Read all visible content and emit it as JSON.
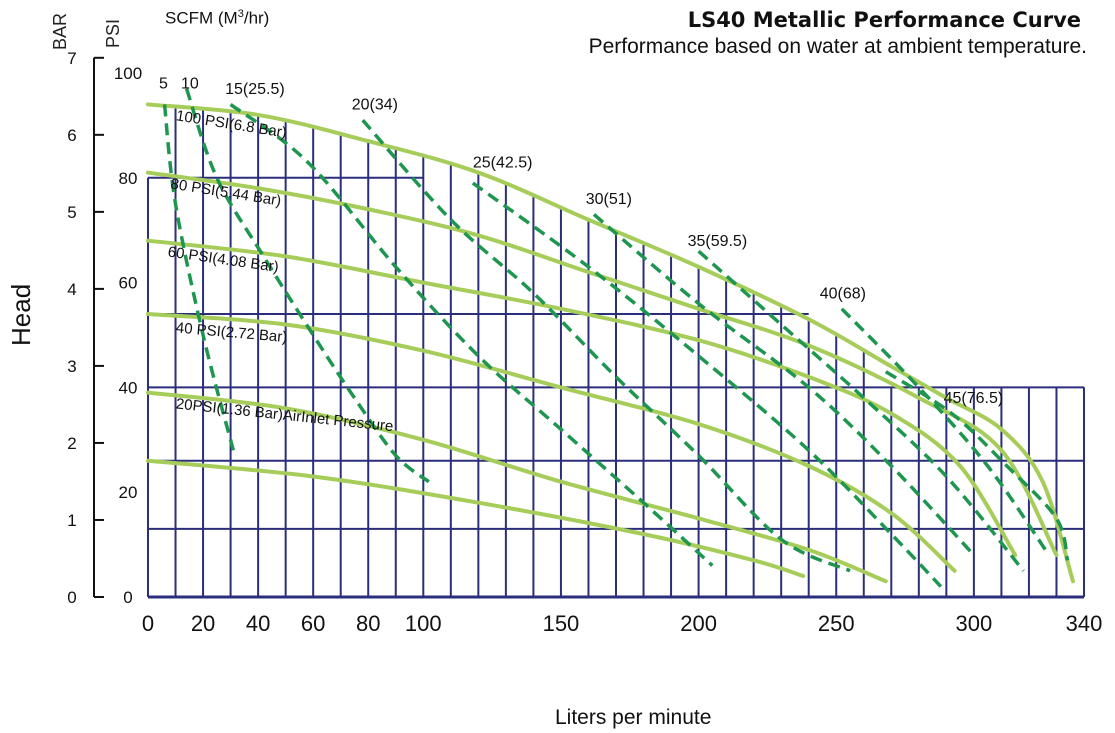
{
  "header": {
    "title": "LS40 Metallic Performance Curve",
    "subtitle": "Performance based on water at ambient temperature.",
    "bar_unit": "BAR",
    "psi_unit": "PSI",
    "scfm_prefix": "SCFM (M",
    "scfm_sup": "3",
    "scfm_suffix": "/hr)",
    "head_label": "Head",
    "x_label": "Liters per minute"
  },
  "chart_data": {
    "type": "line",
    "title": "LS40 Metallic Performance Curve",
    "subtitle": "Performance based on water at ambient temperature.",
    "xlabel": "Liters per minute",
    "ylabel": "Head",
    "xlim": [
      0,
      340
    ],
    "ylim": [
      0,
      100
    ],
    "x_ticks": [
      0,
      20,
      40,
      60,
      80,
      100,
      150,
      200,
      250,
      300,
      340
    ],
    "y_psi_ticks": [
      0,
      20,
      40,
      60,
      80,
      100
    ],
    "y_bar_ticks": [
      0,
      1,
      2,
      3,
      4,
      5,
      6,
      7
    ],
    "grid": true,
    "series": [
      {
        "name": "100 PSI(6.8 Bar)",
        "kind": "air_inlet_pressure",
        "color": "#a6cc5a",
        "points": [
          [
            0,
            94
          ],
          [
            40,
            92
          ],
          [
            80,
            87
          ],
          [
            120,
            81
          ],
          [
            160,
            72
          ],
          [
            200,
            63
          ],
          [
            240,
            53
          ],
          [
            270,
            44
          ],
          [
            290,
            38
          ],
          [
            310,
            32
          ],
          [
            325,
            22
          ],
          [
            336,
            3
          ]
        ]
      },
      {
        "name": "80 PSI(5.44 Bar)",
        "kind": "air_inlet_pressure",
        "color": "#a6cc5a",
        "points": [
          [
            0,
            81
          ],
          [
            40,
            78
          ],
          [
            80,
            74
          ],
          [
            120,
            69
          ],
          [
            160,
            62
          ],
          [
            200,
            55
          ],
          [
            240,
            48
          ],
          [
            280,
            38
          ],
          [
            310,
            28
          ],
          [
            330,
            8
          ]
        ]
      },
      {
        "name": "60 PSI(4.08 Bar)",
        "kind": "air_inlet_pressure",
        "color": "#a6cc5a",
        "points": [
          [
            0,
            68
          ],
          [
            50,
            65
          ],
          [
            100,
            60
          ],
          [
            150,
            55
          ],
          [
            200,
            49
          ],
          [
            240,
            42
          ],
          [
            270,
            35
          ],
          [
            295,
            25
          ],
          [
            315,
            8
          ]
        ]
      },
      {
        "name": "40 PSI(2.72 Bar)",
        "kind": "air_inlet_pressure",
        "color": "#a6cc5a",
        "points": [
          [
            0,
            54
          ],
          [
            50,
            52
          ],
          [
            100,
            47
          ],
          [
            150,
            40
          ],
          [
            200,
            33
          ],
          [
            240,
            25
          ],
          [
            270,
            16
          ],
          [
            293,
            5
          ]
        ]
      },
      {
        "name": "20PSI(1.36 Bar)AirInlet Pressure",
        "kind": "air_inlet_pressure",
        "color": "#a6cc5a",
        "points": [
          [
            0,
            39
          ],
          [
            50,
            36
          ],
          [
            100,
            30
          ],
          [
            150,
            22
          ],
          [
            200,
            15
          ],
          [
            240,
            9
          ],
          [
            268,
            3
          ]
        ]
      },
      {
        "name": "",
        "kind": "air_inlet_pressure",
        "color": "#a6cc5a",
        "points": [
          [
            0,
            26
          ],
          [
            60,
            23
          ],
          [
            120,
            18
          ],
          [
            180,
            12
          ],
          [
            220,
            7
          ],
          [
            238,
            4
          ]
        ]
      },
      {
        "name": "5",
        "kind": "scfm",
        "color": "#1e9650",
        "points": [
          [
            6,
            94
          ],
          [
            10,
            75
          ],
          [
            20,
            50
          ],
          [
            31,
            28
          ]
        ]
      },
      {
        "name": "10",
        "kind": "scfm",
        "color": "#1e9650",
        "points": [
          [
            14,
            97
          ],
          [
            25,
            80
          ],
          [
            42,
            65
          ],
          [
            60,
            50
          ],
          [
            75,
            38
          ],
          [
            90,
            27
          ],
          [
            102,
            22
          ]
        ]
      },
      {
        "name": "15(25.5)",
        "kind": "scfm",
        "color": "#1e9650",
        "points": [
          [
            30,
            94
          ],
          [
            58,
            83
          ],
          [
            90,
            63
          ],
          [
            120,
            46
          ],
          [
            150,
            32
          ],
          [
            180,
            18
          ],
          [
            205,
            6
          ]
        ]
      },
      {
        "name": "20(34)",
        "kind": "scfm",
        "color": "#1e9650",
        "points": [
          [
            78,
            91
          ],
          [
            110,
            72
          ],
          [
            140,
            58
          ],
          [
            170,
            42
          ],
          [
            200,
            27
          ],
          [
            230,
            11
          ],
          [
            255,
            5
          ]
        ]
      },
      {
        "name": "25(42.5)",
        "kind": "scfm",
        "color": "#1e9650",
        "points": [
          [
            118,
            79
          ],
          [
            160,
            63
          ],
          [
            200,
            46
          ],
          [
            240,
            28
          ],
          [
            270,
            12
          ],
          [
            288,
            2
          ]
        ]
      },
      {
        "name": "30(51)",
        "kind": "scfm",
        "color": "#1e9650",
        "points": [
          [
            162,
            73
          ],
          [
            200,
            56
          ],
          [
            240,
            40
          ],
          [
            270,
            25
          ],
          [
            300,
            8
          ]
        ]
      },
      {
        "name": "35(59.5)",
        "kind": "scfm",
        "color": "#1e9650",
        "points": [
          [
            200,
            66
          ],
          [
            230,
            52
          ],
          [
            260,
            38
          ],
          [
            290,
            23
          ],
          [
            318,
            5
          ]
        ]
      },
      {
        "name": "40(68)",
        "kind": "scfm",
        "color": "#1e9650",
        "points": [
          [
            252,
            55
          ],
          [
            280,
            40
          ],
          [
            305,
            25
          ],
          [
            326,
            9
          ]
        ]
      },
      {
        "name": "45(76.5)",
        "kind": "scfm",
        "color": "#1e9650",
        "points": [
          [
            268,
            43
          ],
          [
            292,
            35
          ],
          [
            312,
            25
          ],
          [
            330,
            15
          ],
          [
            334,
            7
          ]
        ]
      }
    ],
    "labels": [
      {
        "text": "5",
        "x": 4,
        "y": 97
      },
      {
        "text": "10",
        "x": 12,
        "y": 97
      },
      {
        "text": "15(25.5)",
        "x": 28,
        "y": 96
      },
      {
        "text": "20(34)",
        "x": 74,
        "y": 93
      },
      {
        "text": "25(42.5)",
        "x": 118,
        "y": 82
      },
      {
        "text": "30(51)",
        "x": 159,
        "y": 75
      },
      {
        "text": "35(59.5)",
        "x": 196,
        "y": 67
      },
      {
        "text": "40(68)",
        "x": 244,
        "y": 57
      },
      {
        "text": "45(76.5)",
        "x": 289,
        "y": 37
      },
      {
        "text": "100 PSI(6.8 Bar)",
        "x": 10,
        "y": 91,
        "rotate": 9
      },
      {
        "text": "80 PSI(5.44 Bar)",
        "x": 8,
        "y": 78,
        "rotate": 9
      },
      {
        "text": "60 PSI(4.08 Bar)",
        "x": 7,
        "y": 65,
        "rotate": 8
      },
      {
        "text": "40 PSI(2.72 Bar)",
        "x": 10,
        "y": 50.5,
        "rotate": 5
      },
      {
        "text": "20PSI(1.36 Bar)AirInlet Pressure",
        "x": 10,
        "y": 36,
        "rotate": 6
      }
    ]
  },
  "colors": {
    "grid": "#2b2e7a",
    "pressure_curve": "#a6cc5a",
    "scfm_curve": "#1e9650",
    "axis": "#111111"
  }
}
